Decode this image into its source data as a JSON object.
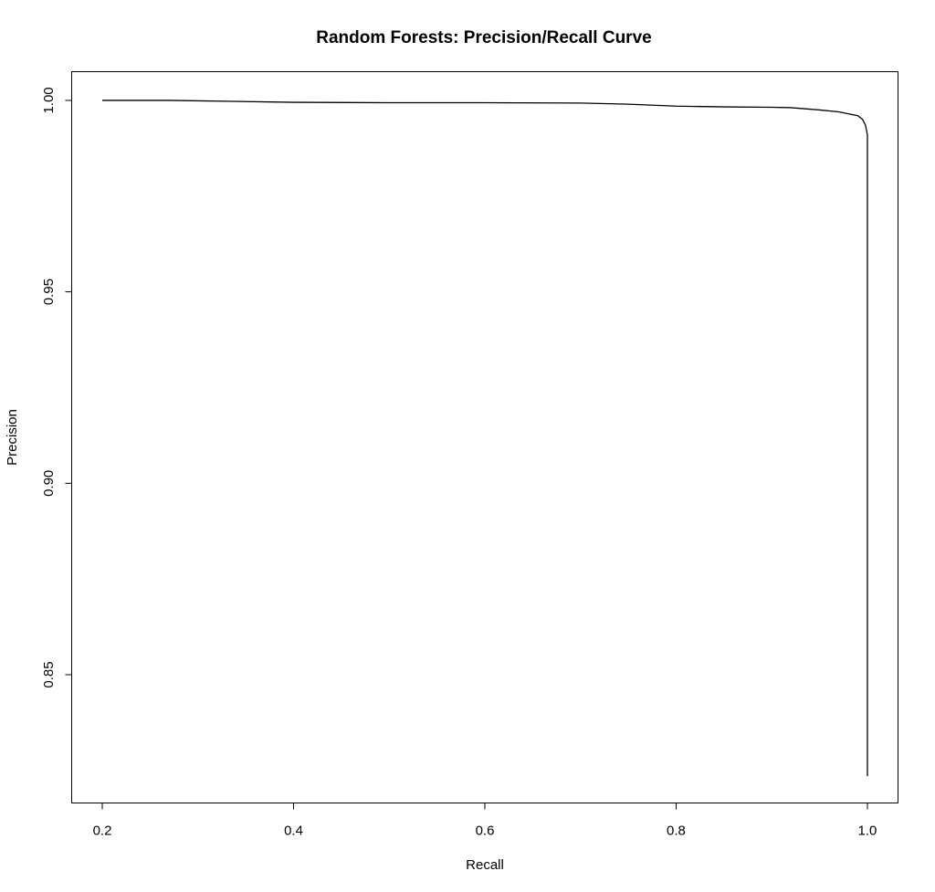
{
  "chart_data": {
    "type": "line",
    "title": "Random Forests: Precision/Recall Curve",
    "xlabel": "Recall",
    "ylabel": "Precision",
    "xlim": [
      0.168,
      1.032
    ],
    "ylim": [
      0.8165,
      1.0075
    ],
    "grid": false,
    "x_ticks": [
      0.2,
      0.4,
      0.6,
      0.8,
      1.0
    ],
    "x_tick_labels": [
      "0.2",
      "0.4",
      "0.6",
      "0.8",
      "1.0"
    ],
    "y_ticks": [
      0.85,
      0.9,
      0.95,
      1.0
    ],
    "y_tick_labels": [
      "0.85",
      "0.90",
      "0.95",
      "1.00"
    ],
    "series": [
      {
        "x": [
          0.2,
          0.27,
          0.4,
          0.5,
          0.6,
          0.7,
          0.75,
          0.8,
          0.85,
          0.9,
          0.92,
          0.95,
          0.97,
          0.98,
          0.99,
          0.995,
          0.998,
          1.0,
          1.0,
          1.0,
          1.0,
          1.0,
          1.0
        ],
        "y": [
          1.0,
          1.0,
          0.9995,
          0.9994,
          0.9994,
          0.9993,
          0.999,
          0.9985,
          0.9983,
          0.9982,
          0.9981,
          0.9975,
          0.997,
          0.9965,
          0.996,
          0.995,
          0.9935,
          0.991,
          0.97,
          0.95,
          0.9,
          0.85,
          0.8235
        ]
      }
    ]
  }
}
